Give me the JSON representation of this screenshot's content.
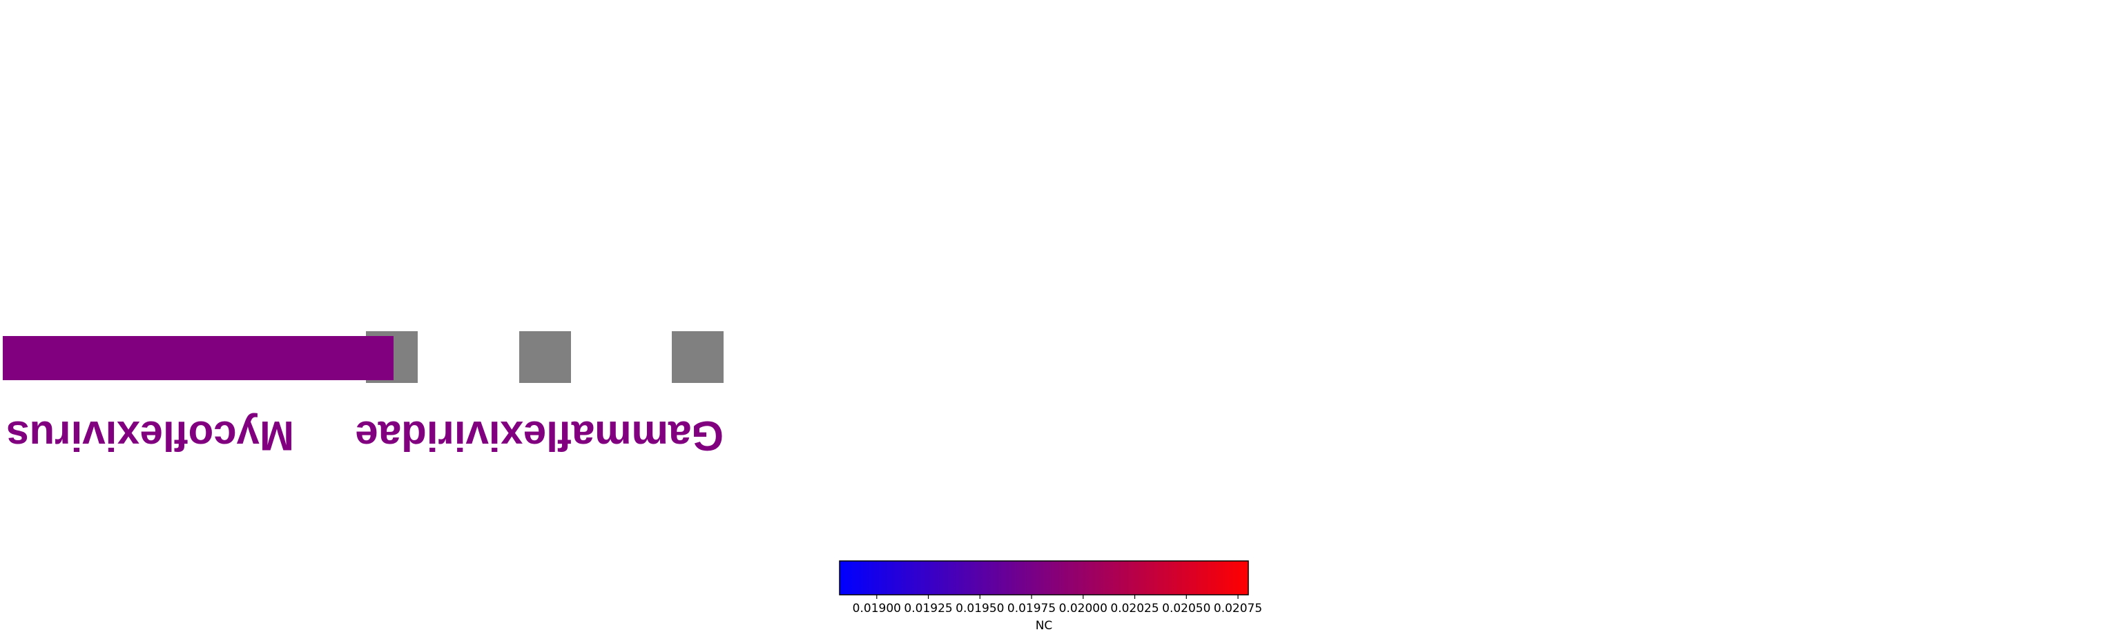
{
  "chart_data": {
    "type": "heatmap",
    "title": "",
    "taxa": [
      {
        "rank": "family",
        "name": "Gammaflexiviridae",
        "color": "#800080"
      },
      {
        "rank": "genus",
        "name": "Mycoflexivirus",
        "color": "#800080"
      }
    ],
    "bar": {
      "color": "#800080",
      "extent": [
        0,
        0.54
      ]
    },
    "cells": [
      {
        "color": "#808080"
      },
      {
        "color": "#808080"
      },
      {
        "color": "#808080"
      }
    ],
    "colorbar": {
      "label": "NC",
      "range": [
        0.01882,
        0.0208
      ],
      "colors": [
        "#0000ff",
        "#ff0000"
      ],
      "ticks": [
        0.019,
        0.01925,
        0.0195,
        0.01975,
        0.02,
        0.02025,
        0.0205,
        0.02075
      ],
      "tick_labels": [
        "0.01900",
        "0.01925",
        "0.01950",
        "0.01975",
        "0.02000",
        "0.02025",
        "0.02050",
        "0.02075"
      ]
    }
  }
}
